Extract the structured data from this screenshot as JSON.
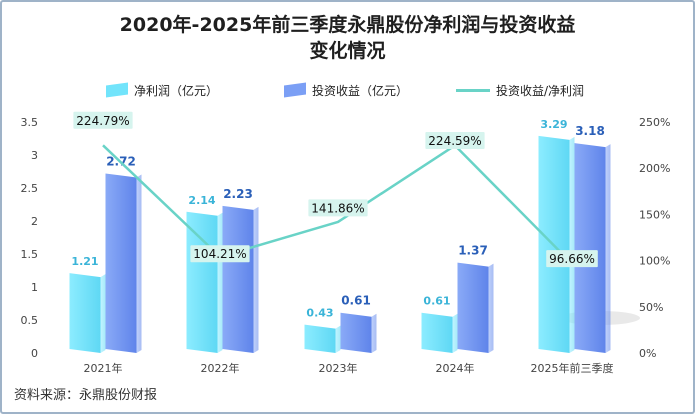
{
  "title": {
    "line1": "2020年-2025年前三季度永鼎股份净利润与投资收益",
    "line2": "变化情况"
  },
  "legend": {
    "net_profit": "净利润（亿元）",
    "investment_income": "投资收益（亿元）",
    "ratio": "投资收益/净利润"
  },
  "source": "资料来源：永鼎股份财报",
  "colors": {
    "net_profit": "#72e4fb",
    "investment_income": "#7b9ff5",
    "ratio_line": "#69d3c7"
  },
  "chart_data": {
    "type": "bar",
    "title": "2020年-2025年前三季度永鼎股份净利润与投资收益变化情况",
    "categories": [
      "2021年",
      "2022年",
      "2023年",
      "2024年",
      "2025年前三季度"
    ],
    "series": [
      {
        "name": "净利润（亿元）",
        "type": "bar",
        "axis": "left",
        "values": [
          1.21,
          2.14,
          0.43,
          0.61,
          3.29
        ]
      },
      {
        "name": "投资收益（亿元）",
        "type": "bar",
        "axis": "left",
        "values": [
          2.72,
          2.23,
          0.61,
          1.37,
          3.18
        ]
      },
      {
        "name": "投资收益/净利润",
        "type": "line",
        "axis": "right",
        "values": [
          224.79,
          104.21,
          141.86,
          224.59,
          96.66
        ],
        "labels": [
          "224.79%",
          "104.21%",
          "141.86%",
          "224.59%",
          "96.66%"
        ]
      }
    ],
    "bar_labels": {
      "net_profit": [
        "1.21",
        "2.14",
        "0.43",
        "0.61",
        "3.29"
      ],
      "investment_income": [
        "2.72",
        "2.23",
        "0.61",
        "1.37",
        "3.18"
      ]
    },
    "y_left": {
      "min": 0,
      "max": 3.5,
      "ticks": [
        "0",
        "0.5",
        "1",
        "1.5",
        "2",
        "2.5",
        "3",
        "3.5"
      ]
    },
    "y_right": {
      "min": 0,
      "max": 250,
      "ticks": [
        "0%",
        "50%",
        "100%",
        "150%",
        "200%",
        "250%"
      ]
    },
    "grid": false,
    "legend_position": "top"
  }
}
